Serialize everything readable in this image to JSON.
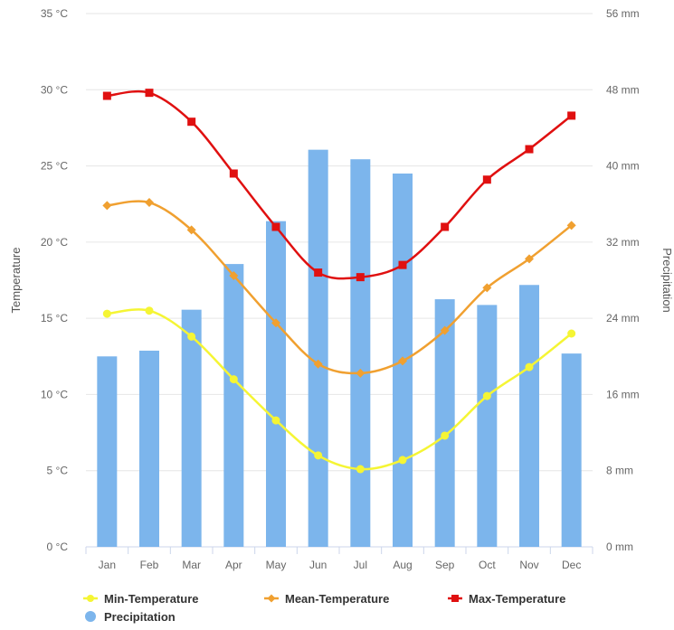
{
  "chart_data": {
    "type": "bar+line",
    "categories": [
      "Jan",
      "Feb",
      "Mar",
      "Apr",
      "May",
      "Jun",
      "Jul",
      "Aug",
      "Sep",
      "Oct",
      "Nov",
      "Dec"
    ],
    "y_left": {
      "label": "Temperature",
      "ticks": [
        "0 °C",
        "5 °C",
        "10 °C",
        "15 °C",
        "20 °C",
        "25 °C",
        "30 °C",
        "35 °C"
      ],
      "min": 0,
      "max": 35,
      "step": 5
    },
    "y_right": {
      "label": "Precipitation",
      "ticks": [
        "0 mm",
        "8 mm",
        "16 mm",
        "24 mm",
        "32 mm",
        "40 mm",
        "48 mm",
        "56 mm"
      ],
      "min": 0,
      "max": 56,
      "step": 8
    },
    "grid": true,
    "legend_position": "bottom",
    "series": [
      {
        "name": "Precipitation",
        "type": "bar",
        "axis": "right",
        "color": "#7cb5ec",
        "values": [
          20,
          20.6,
          24.9,
          29.7,
          34.2,
          41.7,
          40.7,
          39.2,
          26,
          25.4,
          27.5,
          20.3
        ]
      },
      {
        "name": "Min-Temperature",
        "type": "line",
        "axis": "left",
        "color": "#f5f534",
        "marker": "circle",
        "values": [
          15.3,
          15.5,
          13.8,
          11.0,
          8.3,
          6.0,
          5.1,
          5.7,
          7.3,
          9.9,
          11.8,
          14.0
        ]
      },
      {
        "name": "Mean-Temperature",
        "type": "line",
        "axis": "left",
        "color": "#f0a030",
        "marker": "diamond",
        "values": [
          22.4,
          22.6,
          20.8,
          17.8,
          14.7,
          12.0,
          11.4,
          12.2,
          14.2,
          17.0,
          18.9,
          21.1
        ]
      },
      {
        "name": "Max-Temperature",
        "type": "line",
        "axis": "left",
        "color": "#e01010",
        "marker": "square",
        "values": [
          29.6,
          29.8,
          27.9,
          24.5,
          21.0,
          18.0,
          17.7,
          18.5,
          21.0,
          24.1,
          26.1,
          28.3
        ]
      }
    ],
    "legend": [
      {
        "name": "Min-Temperature",
        "color": "#f5f534",
        "marker": "circle"
      },
      {
        "name": "Mean-Temperature",
        "color": "#f0a030",
        "marker": "diamond"
      },
      {
        "name": "Max-Temperature",
        "color": "#e01010",
        "marker": "square"
      },
      {
        "name": "Precipitation",
        "color": "#7cb5ec",
        "marker": "dot"
      }
    ]
  }
}
